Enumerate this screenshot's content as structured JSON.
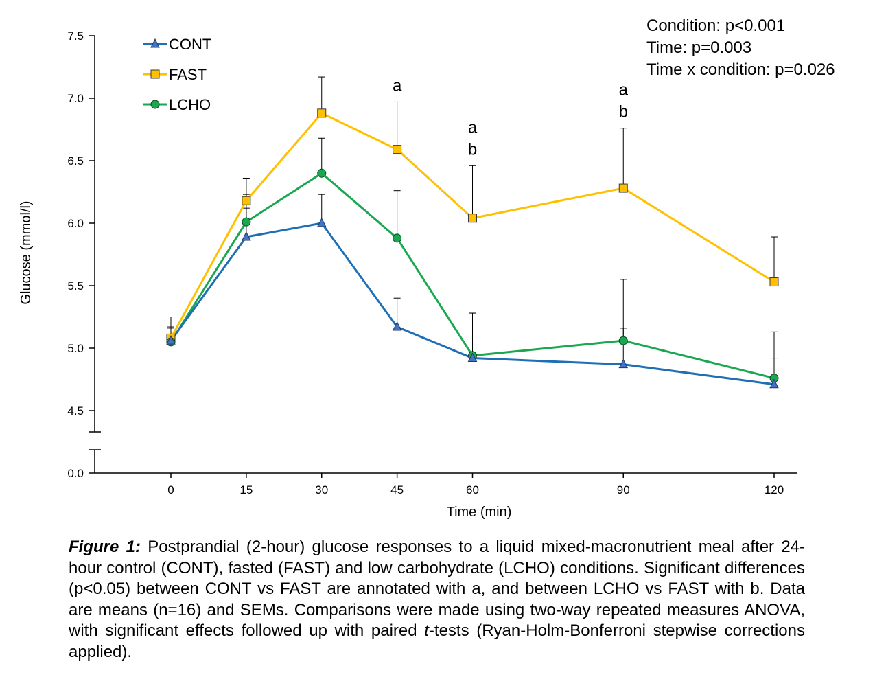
{
  "stats": {
    "line1": "Condition: p<0.001",
    "line2": "Time: p=0.003",
    "line3": "Time x condition: p=0.026"
  },
  "caption": {
    "label": "Figure 1:",
    "part1": " Postprandial (2-hour) glucose responses to a liquid mixed-macronutrient meal after 24-hour control (CONT), fasted (FAST) and low carbohydrate (LCHO) conditions. Significant differences (p<0.05) between CONT vs FAST are annotated with a, and between LCHO vs FAST with b. Data are means (n=16) and SEMs. Comparisons were made using two-way repeated measures ANOVA, with significant effects followed up with paired ",
    "t": "t",
    "part2": "-tests (Ryan-Holm-Bonferroni stepwise corrections applied)."
  },
  "chart_data": {
    "type": "line",
    "xlabel": "Time (min)",
    "ylabel": "Glucose (mmol/l)",
    "categories": [
      "0",
      "15",
      "30",
      "45",
      "60",
      "90",
      "120"
    ],
    "x": [
      0,
      15,
      30,
      45,
      60,
      90,
      120
    ],
    "ylim": [
      4.5,
      7.5
    ],
    "yticks": [
      "4.5",
      "5.0",
      "5.5",
      "6.0",
      "6.5",
      "7.0",
      "7.5"
    ],
    "y_axis_break": true,
    "y_break_label": "0.0",
    "legend_position": "top-left",
    "grid": false,
    "series": [
      {
        "name": "CONT",
        "color": "#1F6FB5",
        "marker": "triangle",
        "values": [
          5.06,
          5.89,
          6.0,
          5.17,
          4.92,
          4.87,
          4.71
        ],
        "sem": [
          0.1,
          0.23,
          0.23,
          0.23,
          0.36,
          0.29,
          0.21
        ]
      },
      {
        "name": "FAST",
        "color": "#FFC000",
        "marker": "square",
        "values": [
          5.08,
          6.18,
          6.88,
          6.59,
          6.04,
          6.28,
          5.53
        ],
        "sem": [
          0.17,
          0.18,
          0.29,
          0.38,
          0.42,
          0.48,
          0.36
        ]
      },
      {
        "name": "LCHO",
        "color": "#19A84F",
        "marker": "circle",
        "values": [
          5.05,
          6.01,
          6.4,
          5.88,
          4.94,
          5.06,
          4.76
        ],
        "sem": [
          0.12,
          0.22,
          0.28,
          0.38,
          0.34,
          0.49,
          0.37
        ]
      }
    ],
    "annotations": [
      {
        "x": 45,
        "labels": [
          "a"
        ]
      },
      {
        "x": 60,
        "labels": [
          "a",
          "b"
        ]
      },
      {
        "x": 90,
        "labels": [
          "a",
          "b"
        ]
      }
    ]
  }
}
